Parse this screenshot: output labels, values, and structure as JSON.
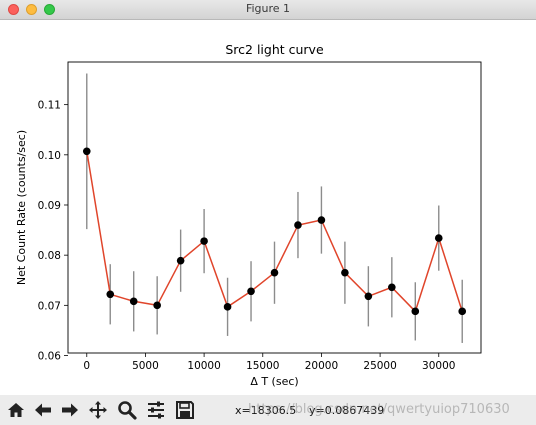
{
  "window": {
    "title": "Figure 1"
  },
  "chart_data": {
    "type": "line",
    "title": "Src2 light curve",
    "xlabel": "Δ T (sec)",
    "ylabel": "Net Count Rate (counts/sec)",
    "xlim": [
      -1600,
      33600
    ],
    "ylim": [
      0.0605,
      0.1185
    ],
    "xticks": [
      0,
      5000,
      10000,
      15000,
      20000,
      25000,
      30000
    ],
    "yticks": [
      0.06,
      0.07,
      0.08,
      0.09,
      0.1,
      0.11
    ],
    "xtick_labels": [
      "0",
      "5000",
      "10000",
      "15000",
      "20000",
      "25000",
      "30000"
    ],
    "ytick_labels": [
      "0.06",
      "0.07",
      "0.08",
      "0.09",
      "0.10",
      "0.11"
    ],
    "grid": false,
    "line_color": "#e0452b",
    "marker_color": "#000000",
    "errorbar_color": "#8c8c8c",
    "series": [
      {
        "x": [
          0,
          2000,
          4000,
          6000,
          8000,
          10000,
          12000,
          14000,
          16000,
          18000,
          20000,
          22000,
          24000,
          26000,
          28000,
          30000,
          32000
        ],
        "y": [
          0.1007,
          0.0722,
          0.0708,
          0.07,
          0.0789,
          0.0828,
          0.0697,
          0.0728,
          0.0765,
          0.086,
          0.087,
          0.0765,
          0.0718,
          0.0736,
          0.0688,
          0.0834,
          0.0688
        ],
        "yerr": [
          0.0155,
          0.006,
          0.006,
          0.0058,
          0.0062,
          0.0064,
          0.0058,
          0.006,
          0.0062,
          0.0066,
          0.0067,
          0.0062,
          0.006,
          0.006,
          0.0058,
          0.0065,
          0.0063
        ]
      }
    ]
  },
  "toolbar": {
    "home_icon": "home-icon",
    "back_icon": "arrow-left-icon",
    "forward_icon": "arrow-right-icon",
    "pan_icon": "move-icon",
    "zoom_icon": "magnifier-icon",
    "subplots_icon": "sliders-icon",
    "save_icon": "floppy-disk-icon",
    "x_readout": "x=18306.5",
    "y_readout": "y=0.0867439",
    "watermark": "https://blog.csdn.net/qwertyuiop710630"
  }
}
